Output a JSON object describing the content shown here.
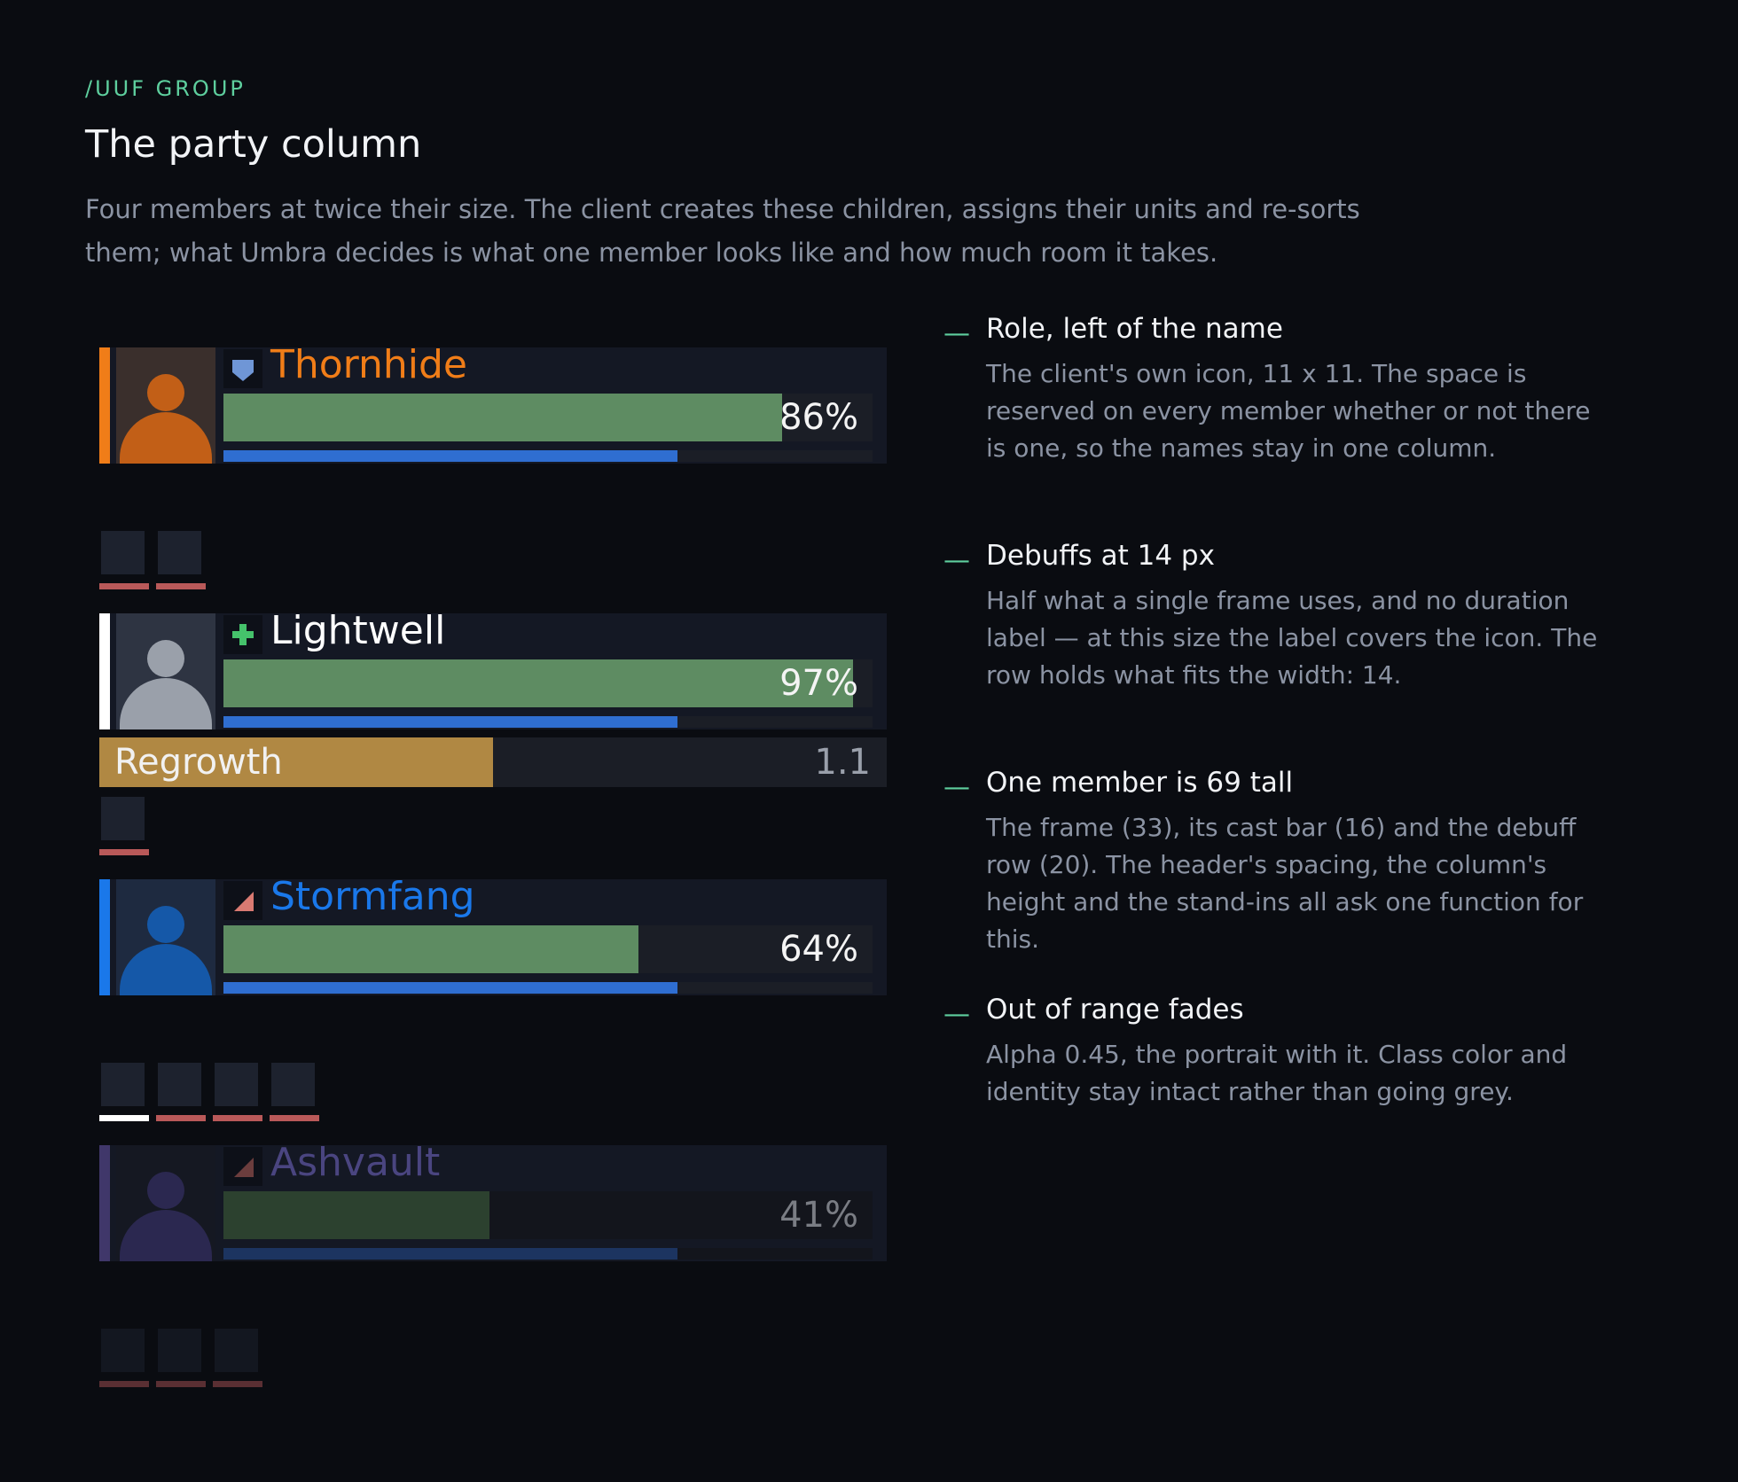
{
  "header": {
    "eyebrow": "/UUF GROUP",
    "title": "The party column",
    "intro": "Four members at twice their size. The client creates these children, assigns their units and re-sorts them; what Umbra decides is what one member looks like and how much room it takes."
  },
  "members": [
    {
      "name": "Thornhide",
      "class_color": "#f07d18",
      "role": "tank",
      "role_icon": "shield-icon",
      "role_color": "#6f96d6",
      "health": 86,
      "health_text": "86%",
      "power": 70,
      "in_range": true,
      "debuffs": [
        {
          "type": "magic",
          "color": "#b95959"
        },
        {
          "type": "magic",
          "color": "#b95959"
        }
      ]
    },
    {
      "name": "Lightwell",
      "class_color": "#ffffff",
      "role": "healer",
      "role_icon": "plus-icon",
      "role_color": "#45c26b",
      "health": 97,
      "health_text": "97%",
      "power": 70,
      "in_range": true,
      "cast": {
        "spell": "Regrowth",
        "time": "1.1",
        "progress": 50,
        "color": "#b08843"
      },
      "debuffs": [
        {
          "type": "magic",
          "color": "#b95959"
        }
      ]
    },
    {
      "name": "Stormfang",
      "class_color": "#1a78ea",
      "role": "damage",
      "role_icon": "sword-icon",
      "role_color": "#d97a72",
      "health": 64,
      "health_text": "64%",
      "power": 70,
      "in_range": true,
      "debuffs": [
        {
          "type": "none",
          "color": "#ffffff"
        },
        {
          "type": "magic",
          "color": "#b95959"
        },
        {
          "type": "magic",
          "color": "#b95959"
        },
        {
          "type": "magic",
          "color": "#b95959"
        }
      ]
    },
    {
      "name": "Ashvault",
      "class_color": "#8f7fe8",
      "role": "damage",
      "role_icon": "sword-icon",
      "role_color": "#d97a72",
      "health": 41,
      "health_text": "41%",
      "power": 70,
      "in_range": false,
      "range_alpha": 0.45,
      "debuffs": [
        {
          "type": "magic",
          "color": "#b95959"
        },
        {
          "type": "magic",
          "color": "#b95959"
        },
        {
          "type": "magic",
          "color": "#b95959"
        }
      ]
    }
  ],
  "notes": [
    {
      "title": "Role, left of the name",
      "body": "The client's own icon, 11 x 11. The space is reserved on every member whether or not there is one, so the names stay in one column."
    },
    {
      "title": "Debuffs at 14 px",
      "body": "Half what a single frame uses, and no duration label — at this size the label covers the icon. The row holds what fits the width: 14."
    },
    {
      "title": "One member is 69 tall",
      "body": "The frame (33), its cast bar (16) and the debuff row (20). The header's spacing, the column's height and the stand-ins all ask one function for this."
    },
    {
      "title": "Out of range fades",
      "body": "Alpha 0.45, the portrait with it. Class color and identity stay intact rather than going grey."
    }
  ],
  "colors": {
    "accent": "#5ecf9e",
    "background": "#0a0c11",
    "health": "#5e8c62",
    "power": "#2f6ed1"
  }
}
